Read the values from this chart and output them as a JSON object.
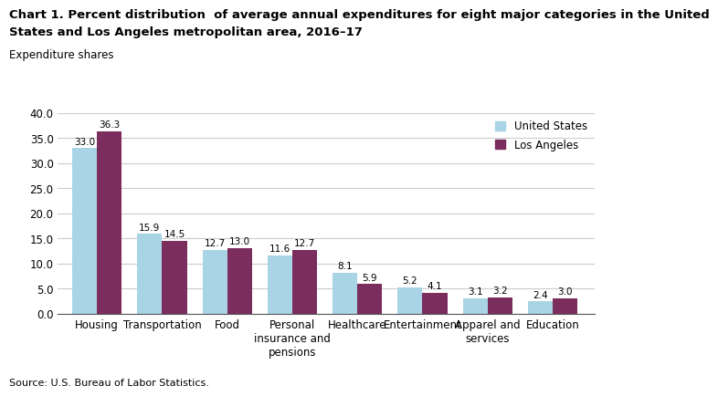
{
  "title_line1": "Chart 1. Percent distribution  of average annual expenditures for eight major categories in the United",
  "title_line2": "States and Los Angeles metropolitan area, 2016–17",
  "ylabel": "Expenditure shares",
  "source": "Source: U.S. Bureau of Labor Statistics.",
  "categories": [
    "Housing",
    "Transportation",
    "Food",
    "Personal\ninsurance and\npensions",
    "Healthcare",
    "Entertainment",
    "Apparel and\nservices",
    "Education"
  ],
  "us_values": [
    33.0,
    15.9,
    12.7,
    11.6,
    8.1,
    5.2,
    3.1,
    2.4
  ],
  "la_values": [
    36.3,
    14.5,
    13.0,
    12.7,
    5.9,
    4.1,
    3.2,
    3.0
  ],
  "us_color": "#a8d4e6",
  "la_color": "#7b2d5e",
  "ylim": [
    0,
    40
  ],
  "yticks": [
    0.0,
    5.0,
    10.0,
    15.0,
    20.0,
    25.0,
    30.0,
    35.0,
    40.0
  ],
  "legend_labels": [
    "United States",
    "Los Angeles"
  ],
  "bar_width": 0.38,
  "title_fontsize": 9.5,
  "label_fontsize": 8.5,
  "tick_fontsize": 8.5,
  "value_fontsize": 7.5
}
